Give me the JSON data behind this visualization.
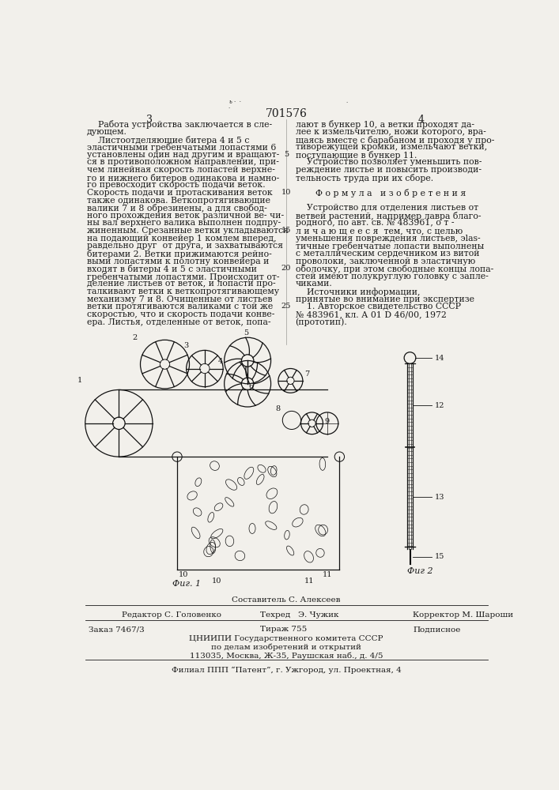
{
  "patent_number": "701576",
  "page_left": "3",
  "page_right": "4",
  "bg_color": "#f2f0eb",
  "text_color": "#1a1a1a",
  "col1_lines": [
    "    Работа устройства заключается в сле-",
    "дующем.",
    "    Листоотделяющие битера 4 и 5 с",
    "эластичными гребенчатыми лопастями 6",
    "установлены один над другим и вращают-",
    "ся в противоположном направлении, при-",
    "чем линейная скорость лопастей верхне-",
    "го и нижнего битеров одинакова и намно-",
    "го превосходит скорость подачи веток.",
    "Скорость подачи и протаскивания веток",
    "также одинакова. Веткопротягивающие",
    "валики 7 и 8 обрезинены, а для свобод-",
    "ного прохождения веток различной ве- чи-",
    "ны вал верхнего валика выполнен подпру-",
    "жиненным. Срезанные ветки укладываются",
    "на подающий конвейер 1 комлем вперед,",
    "равдельно друг  от друга, и захватываются",
    "битерами 2. Ветки прижимаются рейно-",
    "выми лопастями к полотну конвейера и",
    "входят в битеры 4 и 5 с эластичными",
    "гребенчатыми лопастями. Происходит от-",
    "деление листьев от веток, и лопасти про-",
    "талкивают ветки к веткопротягивающему",
    "механизму 7 и 8. Очищенные от листьев",
    "ветки протягиваются валиками с той же",
    "скоростью, что и скорость подачи конве-",
    "ера. Листья, отделенные от веток, попа-"
  ],
  "col2_lines": [
    "лают в бункер 10, а ветки проходят да-",
    "лее к измельчителю, ножи которого, вра-",
    "щаясь вместе с барабаном и проходя у про-",
    "тиворежущей кромки, измельчают ветки,",
    "поступающие в бункер 11.",
    "    Устройство позволяет уменьшить пов-",
    "реждение листье и повысить производи-",
    "тельность труда при их сборе.",
    "",
    "Ф о р м у л а   и з о б р е т е н и я",
    "",
    "    Устройство для отделения листьев от",
    "ветвей растений, например лавра благо-",
    "родного, по авт. св. № 483961, о т -",
    "л и ч а ю щ е е с я  тем, что, с целью",
    "уменьшения повреждения листьев, эlas-",
    "тичные гребенчатые лопасти выполнены",
    "с металлическим сердечником из витой",
    "проволоки, заключенной в эластичную",
    "оболочку, при этом свободные концы лопа-",
    "стей имеют полукруглую головку с запле-",
    "чиками.",
    "    Источники информации,",
    "принятые во внимание при экспертизе",
    "    1. Авторское свидетельство СССР",
    "№ 483961, кл. А 01 D 46/00, 1972",
    "(прототип)."
  ],
  "col2_formula_line": 9,
  "line_numbers_col2": {
    "0": "",
    "5": "5",
    "9": "10",
    "11": "15",
    "19": "20",
    "22": "25"
  },
  "fig1_label": "Фиг. 1",
  "fig2_label": "Фиг 2",
  "footer_compiler": "Составитель С. Алексеев",
  "footer_editor": "Редактор С. Головенко",
  "footer_tech": "Техред   Э. Чужик",
  "footer_corrector": "Корректор М. Шароши",
  "footer_order": "Заказ 7467/3",
  "footer_circulation": "Тираж 755",
  "footer_subscription": "Подписное",
  "footer_org": "ЦНИИПИ Государственного комитета СССР",
  "footer_org2": "по делам изобретений и открытий",
  "footer_addr": "113035, Москва, Ж-35, Раушская наб., д. 4/5",
  "footer_branch": "Филиал ППП “Патент”, г. Ужгород, ул. Проектная, 4"
}
